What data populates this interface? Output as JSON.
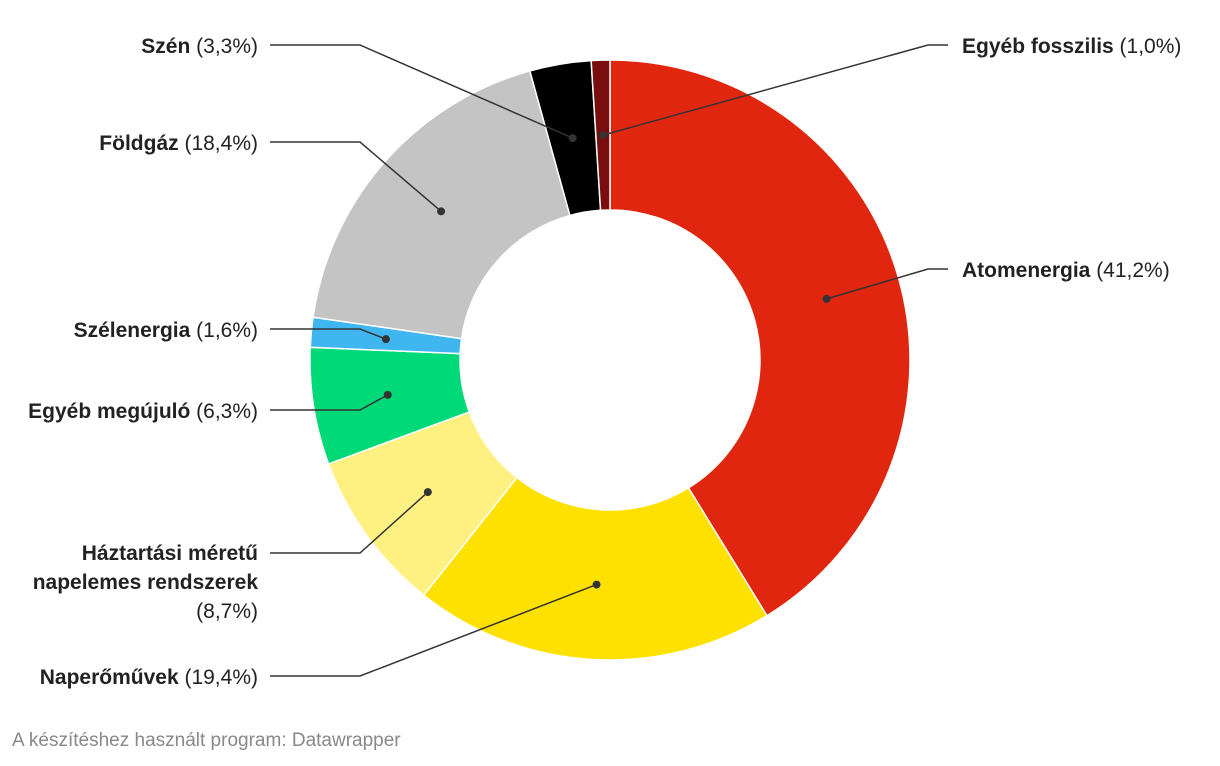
{
  "chart_data": {
    "type": "pie",
    "donut": true,
    "slices": [
      {
        "name": "Atomenergia",
        "value_label": "(41,2%)",
        "value": 41.2,
        "color": "#e0260f"
      },
      {
        "name": "Naperőművek",
        "value_label": "(19,4%)",
        "value": 19.4,
        "color": "#ffe100"
      },
      {
        "name": "Háztartási méretű napelemes rendszerek",
        "value_label": "(8,7%)",
        "value": 8.7,
        "color": "#fff082"
      },
      {
        "name": "Egyéb megújuló",
        "value_label": "(6,3%)",
        "value": 6.3,
        "color": "#00d977"
      },
      {
        "name": "Szélenergia",
        "value_label": "(1,6%)",
        "value": 1.6,
        "color": "#40b6f1"
      },
      {
        "name": "Földgáz",
        "value_label": "(18,4%)",
        "value": 18.4,
        "color": "#c4c4c4"
      },
      {
        "name": "Szén",
        "value_label": "(3,3%)",
        "value": 3.3,
        "color": "#000000"
      },
      {
        "name": "Egyéb fosszilis",
        "value_label": "(1,0%)",
        "value": 1.0,
        "color": "#7a0d0d"
      }
    ]
  },
  "footer": "A készítéshez használt program: Datawrapper"
}
